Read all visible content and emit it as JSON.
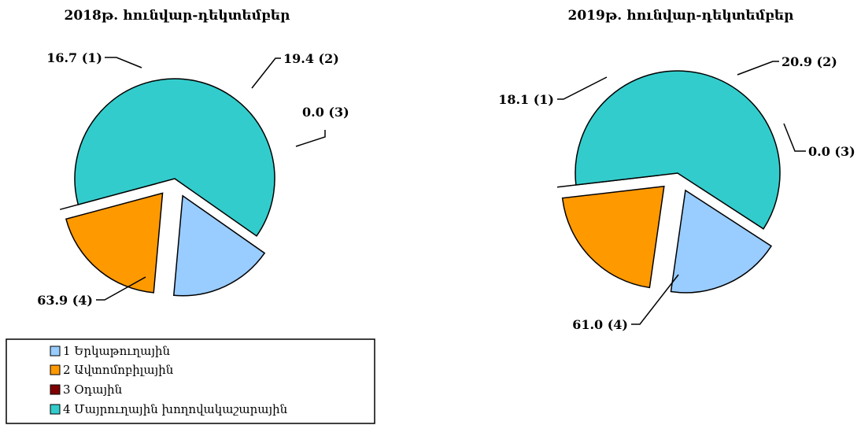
{
  "chart_data": [
    {
      "type": "pie",
      "title": "2018թ. հունվար-դեկտեմբեր",
      "slices": [
        {
          "id": "1",
          "value": 16.7,
          "label": "16.7 (1)",
          "color": "#99ccff"
        },
        {
          "id": "2",
          "value": 19.4,
          "label": "19.4 (2)",
          "color": "#ff9900"
        },
        {
          "id": "3",
          "value": 0.0,
          "label": "0.0 (3)",
          "color": "#800000"
        },
        {
          "id": "4",
          "value": 63.9,
          "label": "63.9 (4)",
          "color": "#33cccc"
        }
      ]
    },
    {
      "type": "pie",
      "title": "2019թ. հունվար-դեկտեմբեր",
      "slices": [
        {
          "id": "1",
          "value": 18.1,
          "label": "18.1 (1)",
          "color": "#99ccff"
        },
        {
          "id": "2",
          "value": 20.9,
          "label": "20.9 (2)",
          "color": "#ff9900"
        },
        {
          "id": "3",
          "value": 0.0,
          "label": "0.0 (3)",
          "color": "#800000"
        },
        {
          "id": "4",
          "value": 61.0,
          "label": "61.0 (4)",
          "color": "#33cccc"
        }
      ]
    }
  ],
  "legend": {
    "placement": "bottom-left",
    "items": [
      {
        "label": "1 Երկաթուղային",
        "color": "#99ccff"
      },
      {
        "label": "2 Ավտոմոբիլային",
        "color": "#ff9900"
      },
      {
        "label": "3 Օդային",
        "color": "#800000"
      },
      {
        "label": "4 Մայրուղային խողովակաշարային",
        "color": "#33cccc"
      }
    ]
  }
}
